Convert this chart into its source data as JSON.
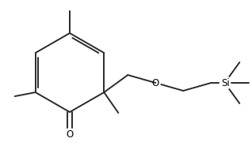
{
  "background_color": "#ffffff",
  "line_color": "#2a2a2a",
  "line_width": 1.4,
  "text_color": "#000000",
  "figsize": [
    3.18,
    1.85
  ],
  "dpi": 100,
  "xlim": [
    0,
    318
  ],
  "ylim": [
    0,
    185
  ]
}
